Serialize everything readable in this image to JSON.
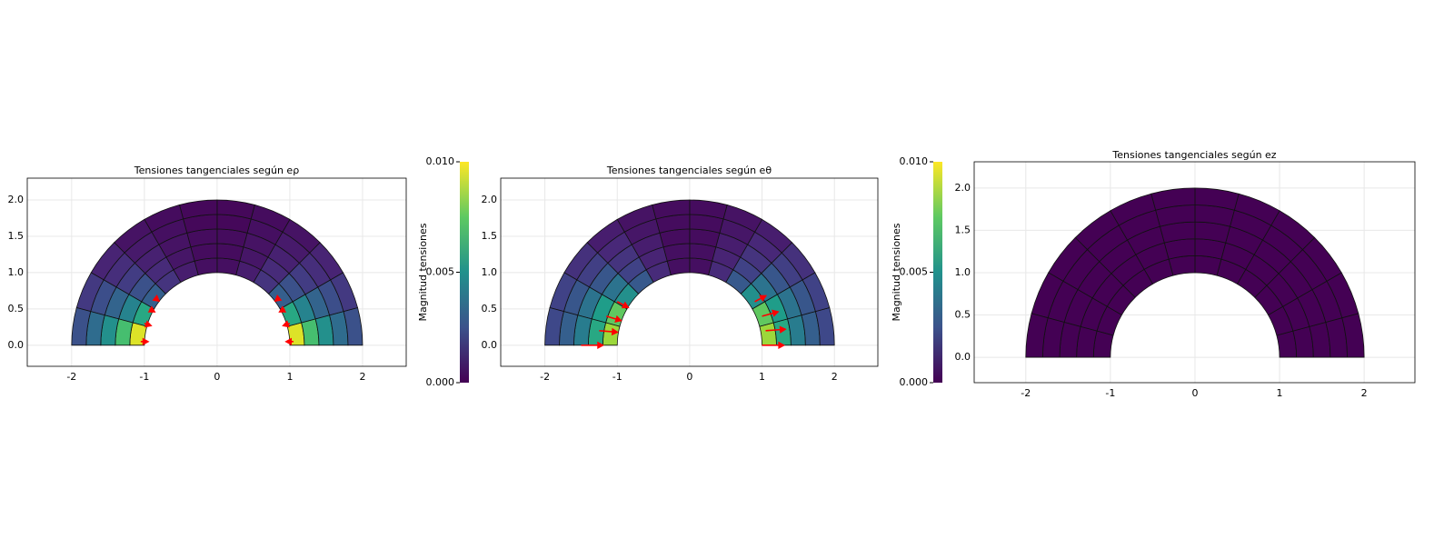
{
  "chart_data": [
    {
      "type": "mesh",
      "title": "Tensiones tangenciales según eρ",
      "colormap": "viridis",
      "clim": [
        0,
        0.01
      ],
      "xlim": [
        -2.61,
        2.6
      ],
      "ylim": [
        -0.29,
        2.3
      ],
      "grid": true,
      "xticks": [
        -2,
        -1,
        0,
        1,
        2
      ],
      "yticks": [
        {
          "value": 0,
          "label": "0.0"
        },
        0.5,
        {
          "value": 1,
          "label": "1.0"
        },
        1.5,
        {
          "value": 2,
          "label": "2.0"
        }
      ],
      "r_edges": [
        1,
        1.2,
        1.4,
        1.6,
        1.8,
        2
      ],
      "theta_edges": [
        0,
        15,
        30,
        45,
        60,
        75,
        90,
        105,
        120,
        135,
        150,
        165,
        180
      ],
      "values": [
        [
          0.0095,
          0.006,
          0.003,
          0.0015,
          0.0008,
          0.0004,
          0.0004,
          0.0008,
          0.0015,
          0.003,
          0.006,
          0.0095
        ],
        [
          0.007,
          0.0045,
          0.0025,
          0.0012,
          0.0006,
          0.0003,
          0.0003,
          0.0006,
          0.0012,
          0.0025,
          0.0045,
          0.007
        ],
        [
          0.005,
          0.0032,
          0.0018,
          0.0009,
          0.0005,
          0.0003,
          0.0003,
          0.0005,
          0.0009,
          0.0018,
          0.0032,
          0.005
        ],
        [
          0.0035,
          0.0024,
          0.0013,
          0.0007,
          0.0004,
          0.0002,
          0.0002,
          0.0004,
          0.0007,
          0.0013,
          0.0024,
          0.0035
        ],
        [
          0.0025,
          0.0017,
          0.001,
          0.0005,
          0.0003,
          0.0002,
          0.0002,
          0.0003,
          0.0005,
          0.001,
          0.0017,
          0.0025
        ]
      ],
      "arrow_color": "#ff0000",
      "arrows": [
        [
          1.05,
          0.05,
          -0.1,
          0
        ],
        [
          1.0,
          0.3,
          -0.09,
          -0.03
        ],
        [
          0.93,
          0.5,
          -0.07,
          -0.04
        ],
        [
          0.85,
          0.65,
          -0.05,
          -0.04
        ],
        [
          -1.05,
          0.05,
          0.1,
          0
        ],
        [
          -1.0,
          0.3,
          0.09,
          -0.03
        ],
        [
          -0.93,
          0.5,
          0.07,
          -0.04
        ],
        [
          -0.85,
          0.65,
          0.05,
          -0.04
        ]
      ],
      "colorbar": {
        "label": "Magnitud tensiones",
        "ticks": [
          {
            "value": 0,
            "label": "0.000"
          },
          0.005,
          {
            "value": 0.01,
            "label": "0.010"
          }
        ]
      }
    },
    {
      "type": "mesh",
      "title": "Tensiones tangenciales según eθ",
      "colormap": "viridis",
      "clim": [
        0,
        0.01
      ],
      "xlim": [
        -2.61,
        2.6
      ],
      "ylim": [
        -0.29,
        2.3
      ],
      "grid": true,
      "xticks": [
        -2,
        -1,
        0,
        1,
        2
      ],
      "yticks": [
        {
          "value": 0,
          "label": "0.0"
        },
        0.5,
        {
          "value": 1,
          "label": "1.0"
        },
        1.5,
        {
          "value": 2,
          "label": "2.0"
        }
      ],
      "r_edges": [
        1,
        1.2,
        1.4,
        1.6,
        1.8,
        2
      ],
      "theta_edges": [
        0,
        15,
        30,
        45,
        60,
        75,
        90,
        105,
        120,
        135,
        150,
        165,
        180
      ],
      "values": [
        [
          0.0085,
          0.0075,
          0.005,
          0.0028,
          0.0012,
          0.0004,
          0.0004,
          0.0012,
          0.0028,
          0.005,
          0.0075,
          0.0085
        ],
        [
          0.006,
          0.0055,
          0.0038,
          0.002,
          0.001,
          0.0004,
          0.0004,
          0.001,
          0.002,
          0.0038,
          0.0055,
          0.006
        ],
        [
          0.0042,
          0.0038,
          0.0027,
          0.0015,
          0.0008,
          0.0003,
          0.0003,
          0.0008,
          0.0015,
          0.0027,
          0.0038,
          0.0042
        ],
        [
          0.003,
          0.0027,
          0.0019,
          0.0011,
          0.0006,
          0.0003,
          0.0003,
          0.0006,
          0.0011,
          0.0019,
          0.0027,
          0.003
        ],
        [
          0.0022,
          0.002,
          0.0014,
          0.0008,
          0.0005,
          0.0003,
          0.0003,
          0.0005,
          0.0008,
          0.0014,
          0.002,
          0.0022
        ]
      ],
      "arrow_color": "#ff0000",
      "arrows": [
        [
          1.0,
          0.0,
          0.3,
          0
        ],
        [
          1.05,
          0.2,
          0.27,
          0.02
        ],
        [
          1.0,
          0.4,
          0.22,
          0.06
        ],
        [
          0.9,
          0.6,
          0.15,
          0.08
        ],
        [
          -1.5,
          0.0,
          0.3,
          0
        ],
        [
          -1.25,
          0.2,
          0.25,
          -0.02
        ],
        [
          -1.15,
          0.4,
          0.2,
          -0.06
        ],
        [
          -1.0,
          0.6,
          0.15,
          -0.08
        ]
      ],
      "colorbar": {
        "label": "Magnitud tensiones",
        "ticks": [
          {
            "value": 0,
            "label": "0.000"
          },
          0.005,
          {
            "value": 0.01,
            "label": "0.010"
          }
        ]
      }
    },
    {
      "type": "mesh",
      "title": "Tensiones tangenciales según ez",
      "colormap": "viridis",
      "clim": [
        0,
        0.01
      ],
      "xlim": [
        -2.61,
        2.6
      ],
      "ylim": [
        -0.3,
        2.31
      ],
      "grid": true,
      "xticks": [
        -2,
        -1,
        0,
        1,
        2
      ],
      "yticks": [
        {
          "value": 0,
          "label": "0.0"
        },
        0.5,
        {
          "value": 1,
          "label": "1.0"
        },
        1.5,
        {
          "value": 2,
          "label": "2.0"
        }
      ],
      "r_edges": [
        1,
        1.2,
        1.4,
        1.6,
        1.8,
        2
      ],
      "theta_edges": [
        0,
        15,
        30,
        45,
        60,
        75,
        90,
        105,
        120,
        135,
        150,
        165,
        180
      ],
      "values": [
        [
          0,
          0,
          0,
          0,
          0,
          0,
          0,
          0,
          0,
          0,
          0,
          0
        ],
        [
          0,
          0,
          0,
          0,
          0,
          0,
          0,
          0,
          0,
          0,
          0,
          0
        ],
        [
          0,
          0,
          0,
          0,
          0,
          0,
          0,
          0,
          0,
          0,
          0,
          0
        ],
        [
          0,
          0,
          0,
          0,
          0,
          0,
          0,
          0,
          0,
          0,
          0,
          0
        ],
        [
          0,
          0,
          0,
          0,
          0,
          0,
          0,
          0,
          0,
          0,
          0,
          0
        ]
      ],
      "arrow_color": "#ff0000",
      "arrows": []
    }
  ]
}
